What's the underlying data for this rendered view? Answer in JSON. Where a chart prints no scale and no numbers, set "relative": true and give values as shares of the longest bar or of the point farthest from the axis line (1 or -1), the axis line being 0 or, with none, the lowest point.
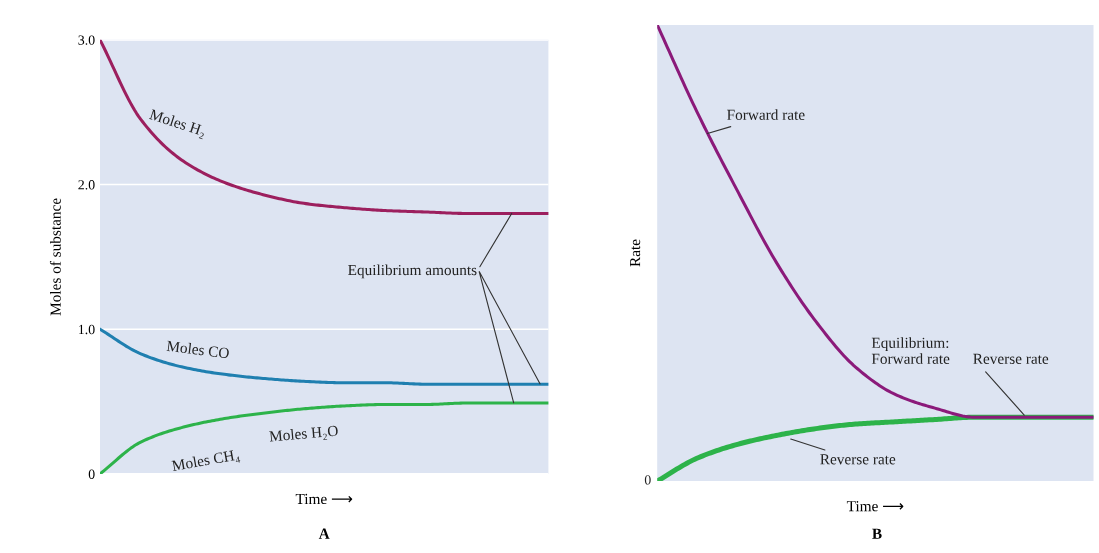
{
  "chart_data": [
    {
      "type": "line",
      "title": "A",
      "xlabel": "Time ⟶",
      "ylabel": "Moles of substance",
      "categories": [
        null,
        null,
        null,
        null,
        null,
        null,
        null,
        null,
        null,
        null,
        null,
        null
      ],
      "series": [
        {
          "name": "Moles H₂",
          "color": "#9c1f5e",
          "values": [
            3.0,
            2.45,
            2.17,
            2.02,
            1.93,
            1.87,
            1.84,
            1.82,
            1.81,
            1.8,
            1.8,
            1.8
          ]
        },
        {
          "name": "Moles CO",
          "color": "#1f7fb0",
          "values": [
            1.0,
            0.83,
            0.74,
            0.69,
            0.66,
            0.64,
            0.63,
            0.63,
            0.62,
            0.62,
            0.62,
            0.62
          ]
        },
        {
          "name": "Moles CH₄",
          "color": "#2db34a",
          "values": [
            0,
            0.22,
            0.32,
            0.38,
            0.42,
            0.45,
            0.47,
            0.48,
            0.48,
            0.49,
            0.49,
            0.49
          ]
        }
      ],
      "annotations": [
        "Moles H₂O",
        "Equilibrium amounts"
      ],
      "ylim": [
        0,
        3.0
      ],
      "yticks": [
        0,
        {
          "value": 1,
          "label": "1.0"
        },
        {
          "value": 2,
          "label": "2.0"
        },
        {
          "value": 3,
          "label": "3.0"
        }
      ],
      "grid": "y",
      "tick_labels": "y"
    },
    {
      "type": "line",
      "title": "B",
      "xlabel": "Time ⟶",
      "ylabel": "Rate",
      "relative": true,
      "categories": [
        null,
        null,
        null,
        null,
        null,
        null,
        null,
        null,
        null,
        null,
        null,
        null
      ],
      "series": [
        {
          "name": "Forward rate",
          "color": "#8b1a7a",
          "values": [
            1.0,
            0.81,
            0.64,
            0.48,
            0.35,
            0.25,
            0.19,
            0.16,
            0.14,
            0.14,
            0.14,
            0.14
          ]
        },
        {
          "name": "Reverse rate",
          "color": "#2db34a",
          "values": [
            0,
            0.05,
            0.08,
            0.1,
            0.115,
            0.125,
            0.13,
            0.135,
            0.14,
            0.14,
            0.14,
            0.14
          ]
        }
      ],
      "annotations": [
        "Equilibrium:\nForward rate      Reverse rate",
        "0"
      ],
      "tick_labels": false
    }
  ]
}
